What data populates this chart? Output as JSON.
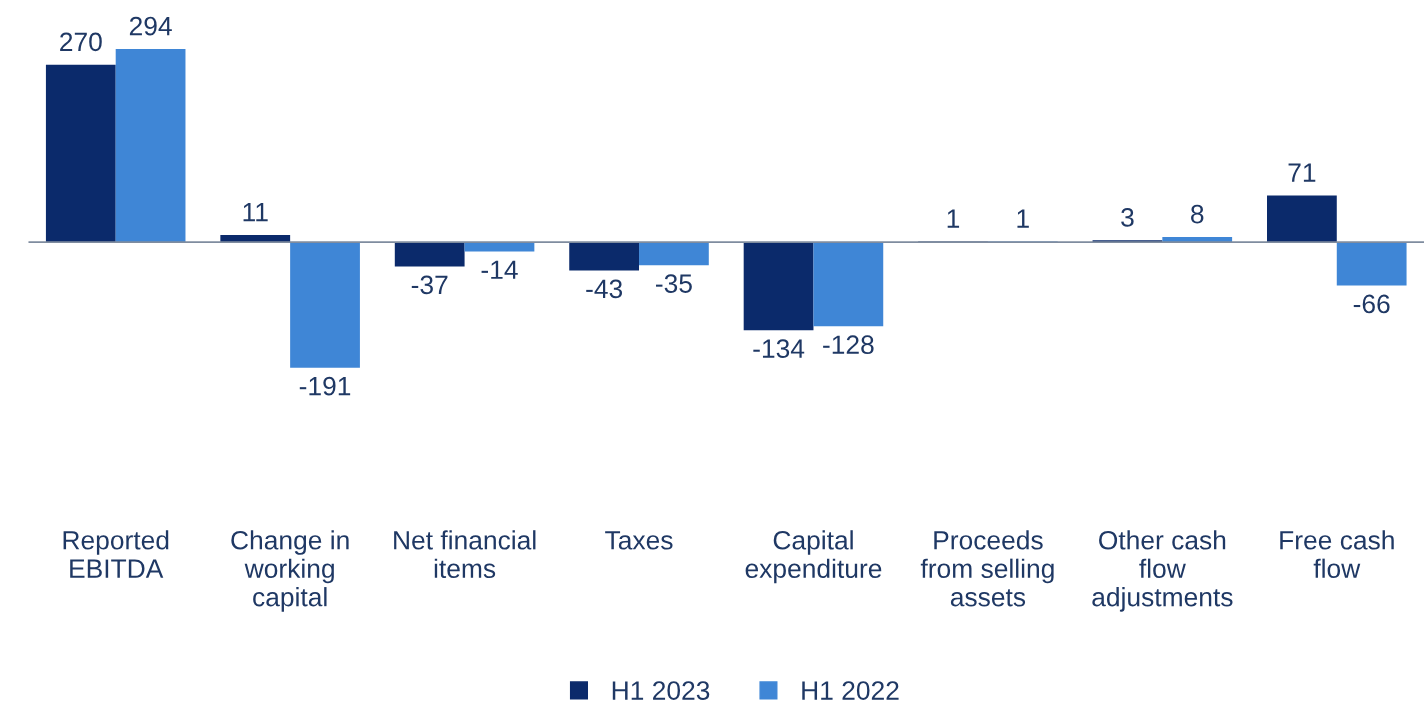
{
  "chart_data": {
    "type": "bar",
    "categories": [
      "Reported\nEBITDA",
      "Change in\nworking\ncapital",
      "Net financial\nitems",
      "Taxes",
      "Capital\nexpenditure",
      "Proceeds\nfrom selling\nassets",
      "Other cash\nflow\nadjustments",
      "Free cash\nflow"
    ],
    "series": [
      {
        "name": "H1 2023",
        "color": "#0b2a6b",
        "values": [
          270,
          11,
          -37,
          -43,
          -134,
          1,
          3,
          71
        ]
      },
      {
        "name": "H1 2022",
        "color": "#3f86d6",
        "values": [
          294,
          -191,
          -14,
          -35,
          -128,
          1,
          8,
          -66
        ]
      }
    ],
    "data_labels": true,
    "legend": "bottom",
    "tick_labels": "x"
  }
}
